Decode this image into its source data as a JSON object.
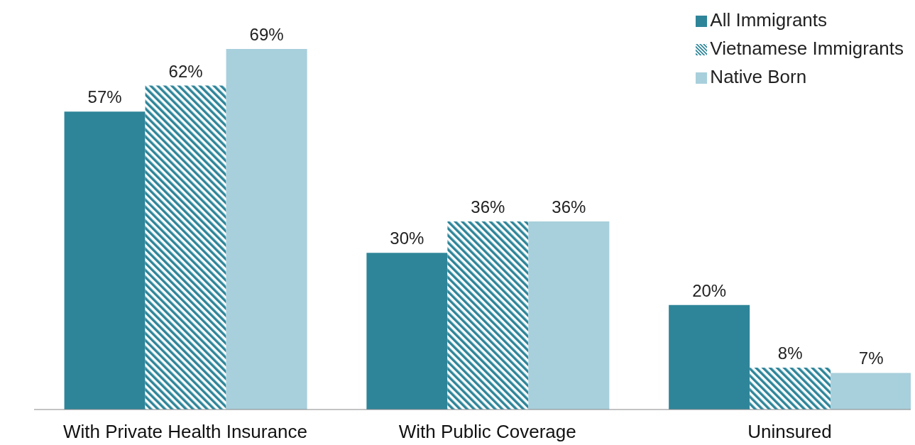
{
  "chart_data": {
    "type": "bar",
    "categories": [
      "With Private Health Insurance",
      "With Public Coverage",
      "Uninsured"
    ],
    "series": [
      {
        "name": "All Immigrants",
        "color": "#2e8599",
        "values": [
          57,
          30,
          20
        ],
        "value_labels": [
          "57%",
          "30%",
          "20%"
        ]
      },
      {
        "name": "Vietnamese Immigrants",
        "color": "#2e8599",
        "values": [
          62,
          36,
          8
        ],
        "value_labels": [
          "62%",
          "36%",
          "8%"
        ]
      },
      {
        "name": "Native Born",
        "color": "#a8cfdc",
        "values": [
          69,
          36,
          7
        ],
        "value_labels": [
          "69%",
          "36%",
          "7%"
        ]
      }
    ],
    "legend": "top right"
  }
}
